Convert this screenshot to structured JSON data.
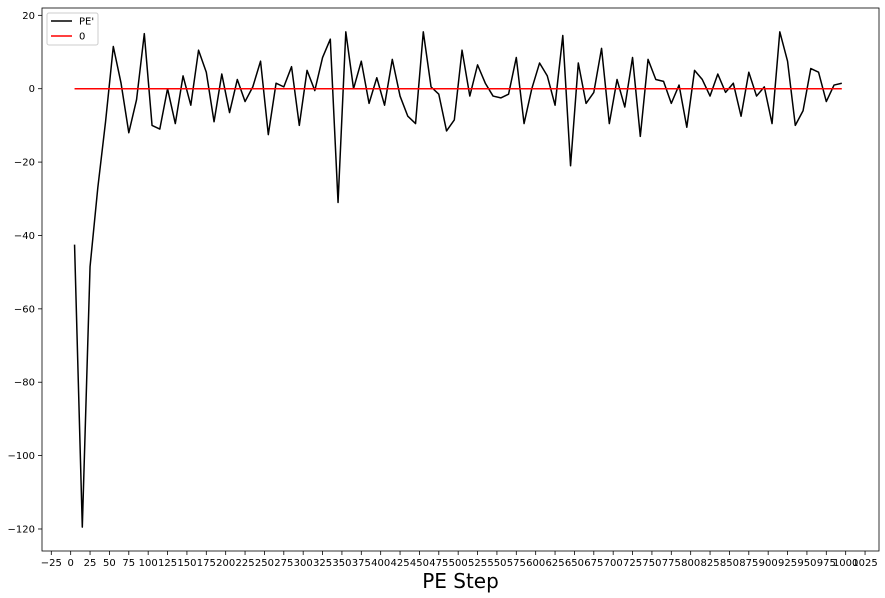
{
  "chart_data": {
    "type": "line",
    "title": "",
    "xlabel": "PE Step",
    "ylabel": "",
    "xlim": [
      -37,
      1043
    ],
    "ylim": [
      -126,
      22
    ],
    "x_ticks": [
      -25,
      0,
      25,
      50,
      75,
      100,
      125,
      150,
      175,
      200,
      225,
      250,
      275,
      300,
      325,
      350,
      375,
      400,
      425,
      450,
      475,
      500,
      525,
      550,
      575,
      600,
      625,
      650,
      675,
      700,
      725,
      750,
      775,
      800,
      825,
      850,
      875,
      900,
      925,
      950,
      975,
      1000,
      1025
    ],
    "y_ticks": [
      20,
      0,
      -20,
      -40,
      -60,
      -80,
      -100,
      -120
    ],
    "grid": false,
    "legend": "top-left",
    "series": [
      {
        "name": "PE'",
        "color": "#000000",
        "x": [
          5,
          15,
          25,
          35,
          45,
          55,
          65,
          75,
          85,
          95,
          105,
          115,
          125,
          135,
          145,
          155,
          165,
          175,
          185,
          195,
          205,
          215,
          225,
          235,
          245,
          255,
          265,
          275,
          285,
          295,
          305,
          315,
          325,
          335,
          345,
          355,
          365,
          375,
          385,
          395,
          405,
          415,
          425,
          435,
          445,
          455,
          465,
          475,
          485,
          495,
          505,
          515,
          525,
          535,
          545,
          555,
          565,
          575,
          585,
          595,
          605,
          615,
          625,
          635,
          645,
          655,
          665,
          675,
          685,
          695,
          705,
          715,
          725,
          735,
          745,
          755,
          765,
          775,
          785,
          795,
          805,
          815,
          825,
          835,
          845,
          855,
          865,
          875,
          885,
          895,
          905,
          915,
          925,
          935,
          945,
          955,
          965,
          975,
          985,
          995
        ],
        "values": [
          -42.5,
          -119.5,
          -48.5,
          -27,
          -9,
          11.5,
          1.5,
          -12,
          -3,
          15,
          -10,
          -11,
          0,
          -9.5,
          3.5,
          -4.5,
          10.5,
          4.5,
          -9,
          4,
          -6.5,
          2.5,
          -3.5,
          0.5,
          7.5,
          -12.5,
          1.5,
          0.5,
          6,
          -10,
          5,
          -0.5,
          8.5,
          13.5,
          -31,
          15.5,
          0,
          7.5,
          -4,
          3,
          -4.5,
          8,
          -2,
          -7.5,
          -9.5,
          15.5,
          0.5,
          -1.5,
          -11.5,
          -8.5,
          10.5,
          -2,
          6.5,
          1.5,
          -2,
          -2.5,
          -1.5,
          8.5,
          -9.5,
          0,
          7,
          3.5,
          -4.5,
          14.5,
          -21,
          7,
          -4,
          -1,
          11,
          -9.5,
          2.5,
          -5,
          8.5,
          -13,
          8,
          2.5,
          2,
          -4,
          1,
          -10.5,
          5,
          2.5,
          -2,
          4,
          -1,
          1.5,
          -7.5,
          4.5,
          -2,
          0.5,
          -9.5,
          15.5,
          7.5,
          -10,
          -6,
          5.5,
          4.5,
          -3.5,
          1,
          1.5
        ]
      },
      {
        "name": "0",
        "color": "#ff0000",
        "x": [
          5,
          995
        ],
        "values": [
          0,
          0
        ]
      }
    ]
  }
}
